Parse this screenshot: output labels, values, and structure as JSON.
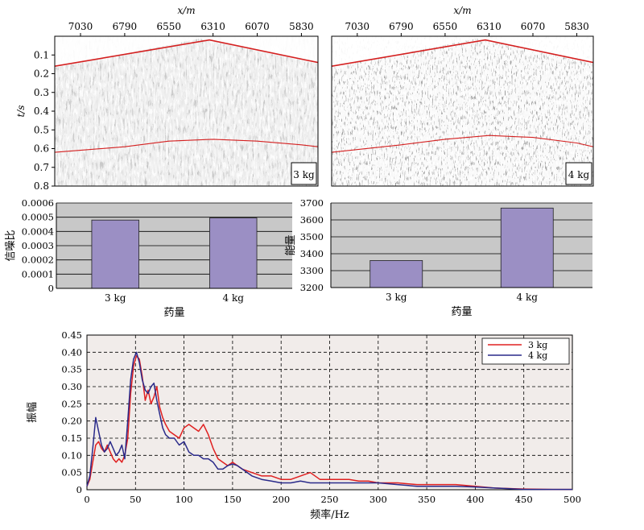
{
  "chart_data": [
    {
      "type": "heatmap",
      "xlabel": "x/m",
      "ylabel": "t/s",
      "x_ticks": [
        "7030",
        "6790",
        "6550",
        "6310",
        "6070",
        "5830"
      ],
      "y_ticks": [
        "0.1",
        "0.2",
        "0.3",
        "0.4",
        "0.5",
        "0.6",
        "0.7",
        "0.8"
      ],
      "xlim": [
        7170,
        5740
      ],
      "ylim": [
        0.0,
        0.8
      ],
      "annotation": "3 kg",
      "first_break_line": {
        "x": [
          7170,
          6330,
          5740
        ],
        "t": [
          0.16,
          0.02,
          0.14
        ]
      },
      "reflection_curve": {
        "x": [
          7170,
          6790,
          6550,
          6310,
          6070,
          5830,
          5740
        ],
        "t": [
          0.62,
          0.59,
          0.56,
          0.55,
          0.56,
          0.58,
          0.59
        ]
      }
    },
    {
      "type": "heatmap",
      "xlabel": "x/m",
      "x_ticks": [
        "7030",
        "6790",
        "6550",
        "6310",
        "6070",
        "5830"
      ],
      "xlim": [
        7170,
        5740
      ],
      "ylim": [
        0.0,
        0.8
      ],
      "annotation": "4 kg",
      "first_break_line": {
        "x": [
          7170,
          6330,
          5740
        ],
        "t": [
          0.16,
          0.02,
          0.14
        ]
      },
      "reflection_curve": {
        "x": [
          7170,
          6790,
          6550,
          6310,
          6070,
          5830,
          5740
        ],
        "t": [
          0.62,
          0.58,
          0.55,
          0.53,
          0.54,
          0.57,
          0.59
        ]
      }
    },
    {
      "type": "bar",
      "categories": [
        "3 kg",
        "4 kg"
      ],
      "values": [
        0.00048,
        0.000495
      ],
      "xlabel": "药量",
      "ylabel": "信噪比",
      "ylim": [
        0,
        0.0006
      ],
      "y_ticks": [
        "0",
        "0.0001",
        "0.0002",
        "0.0003",
        "0.0004",
        "0.0005",
        "0.0006"
      ],
      "bar_color": "#9b8fc4"
    },
    {
      "type": "bar",
      "categories": [
        "3 kg",
        "4 kg"
      ],
      "values": [
        3360,
        3670
      ],
      "xlabel": "药量",
      "ylabel": "能量",
      "ylim": [
        3200,
        3700
      ],
      "y_ticks": [
        "3200",
        "3300",
        "3400",
        "3500",
        "3600",
        "3700"
      ],
      "bar_color": "#9b8fc4"
    },
    {
      "type": "line",
      "xlabel": "频率/Hz",
      "ylabel": "振幅",
      "xlim": [
        0,
        500
      ],
      "ylim": [
        0,
        0.45
      ],
      "x_ticks": [
        "0",
        "50",
        "100",
        "150",
        "200",
        "250",
        "300",
        "350",
        "400",
        "450",
        "500"
      ],
      "y_ticks": [
        "0",
        "0.05",
        "0.10",
        "0.15",
        "0.20",
        "0.25",
        "0.30",
        "0.35",
        "0.40",
        "0.45"
      ],
      "grid": true,
      "legend": "top-right",
      "series": [
        {
          "name": "3 kg",
          "color": "#e02020",
          "x": [
            0,
            3,
            6,
            9,
            12,
            15,
            18,
            21,
            24,
            27,
            30,
            33,
            36,
            39,
            42,
            45,
            48,
            51,
            54,
            57,
            60,
            63,
            66,
            69,
            72,
            75,
            78,
            81,
            85,
            90,
            95,
            100,
            105,
            110,
            115,
            120,
            125,
            130,
            135,
            140,
            145,
            150,
            155,
            160,
            170,
            180,
            190,
            200,
            210,
            220,
            230,
            240,
            250,
            260,
            270,
            280,
            290,
            300,
            320,
            340,
            360,
            380,
            400,
            420,
            450,
            480,
            500
          ],
          "y": [
            0.01,
            0.03,
            0.08,
            0.13,
            0.14,
            0.12,
            0.11,
            0.13,
            0.11,
            0.09,
            0.08,
            0.09,
            0.08,
            0.1,
            0.15,
            0.28,
            0.36,
            0.39,
            0.38,
            0.33,
            0.26,
            0.29,
            0.25,
            0.27,
            0.3,
            0.24,
            0.21,
            0.19,
            0.17,
            0.16,
            0.15,
            0.18,
            0.19,
            0.18,
            0.17,
            0.19,
            0.16,
            0.12,
            0.09,
            0.08,
            0.07,
            0.08,
            0.07,
            0.06,
            0.05,
            0.04,
            0.04,
            0.03,
            0.03,
            0.04,
            0.05,
            0.03,
            0.03,
            0.03,
            0.03,
            0.025,
            0.025,
            0.02,
            0.02,
            0.015,
            0.015,
            0.015,
            0.01,
            0.005,
            0.002,
            0.001,
            0.001
          ]
        },
        {
          "name": "4 kg",
          "color": "#2a2a8a",
          "x": [
            0,
            3,
            6,
            9,
            12,
            15,
            18,
            21,
            24,
            27,
            30,
            33,
            36,
            39,
            42,
            45,
            48,
            51,
            54,
            57,
            60,
            63,
            66,
            69,
            72,
            75,
            78,
            81,
            85,
            90,
            95,
            100,
            105,
            110,
            115,
            120,
            125,
            130,
            135,
            140,
            145,
            150,
            155,
            160,
            170,
            180,
            190,
            200,
            210,
            220,
            230,
            240,
            250,
            260,
            270,
            280,
            290,
            300,
            320,
            340,
            360,
            380,
            400,
            420,
            450,
            480,
            500
          ],
          "y": [
            0.01,
            0.04,
            0.12,
            0.21,
            0.17,
            0.13,
            0.11,
            0.12,
            0.14,
            0.12,
            0.1,
            0.11,
            0.13,
            0.09,
            0.2,
            0.32,
            0.38,
            0.4,
            0.37,
            0.32,
            0.29,
            0.28,
            0.3,
            0.31,
            0.26,
            0.22,
            0.18,
            0.16,
            0.15,
            0.15,
            0.13,
            0.14,
            0.11,
            0.1,
            0.1,
            0.09,
            0.09,
            0.08,
            0.06,
            0.06,
            0.07,
            0.075,
            0.07,
            0.06,
            0.04,
            0.03,
            0.025,
            0.02,
            0.02,
            0.025,
            0.02,
            0.02,
            0.02,
            0.02,
            0.02,
            0.02,
            0.02,
            0.02,
            0.015,
            0.01,
            0.01,
            0.01,
            0.008,
            0.005,
            0.001,
            0.001,
            0.001
          ]
        }
      ]
    }
  ]
}
